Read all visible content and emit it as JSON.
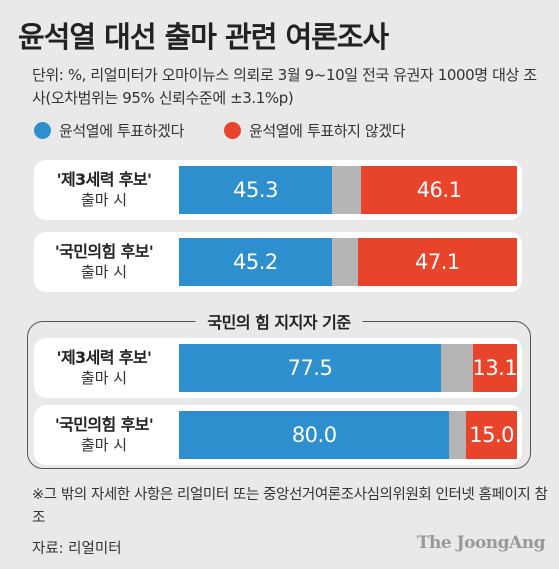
{
  "title": "윤석열 대선 출마 관련 여론조사",
  "subtitle": "단위: %, 리얼미터가 오마이뉴스 의뢰로 3월 9~10일 전국 유권자 1000명 대상 조사(오차범위는 95% 신뢰수준에 ±3.1%p)",
  "legend": {
    "vote": "윤석열에 투표하겠다",
    "no_vote": "윤석열에 투표하지 않겠다"
  },
  "colors": {
    "vote": "#2e8fce",
    "no_vote": "#e8442b",
    "other": "#b5b5b5"
  },
  "group_title": "국민의 힘 지지자 기준",
  "chart_data": [
    {
      "type": "bar",
      "title": "",
      "categories": [
        "'제3세력 후보' 출마 시",
        "'국민의힘 후보' 출마 시"
      ],
      "series": [
        {
          "name": "윤석열에 투표하겠다",
          "values": [
            45.3,
            45.2
          ]
        },
        {
          "name": "윤석열에 투표하지 않겠다",
          "values": [
            46.1,
            47.1
          ]
        }
      ],
      "stacked": true,
      "xlim": [
        0,
        100
      ]
    },
    {
      "type": "bar",
      "title": "국민의 힘 지지자 기준",
      "categories": [
        "'제3세력 후보' 출마 시",
        "'국민의힘 후보' 출마 시"
      ],
      "series": [
        {
          "name": "윤석열에 투표하겠다",
          "values": [
            77.5,
            80.0
          ]
        },
        {
          "name": "윤석열에 투표하지 않겠다",
          "values": [
            13.1,
            15.0
          ]
        }
      ],
      "stacked": true,
      "xlim": [
        0,
        100
      ]
    }
  ],
  "rows": [
    {
      "main": "'제3세력 후보'",
      "sub": "출마 시",
      "yes": 45.3,
      "no": 46.1,
      "yes_label": "45.3",
      "no_label": "46.1"
    },
    {
      "main": "'국민의힘 후보'",
      "sub": "출마 시",
      "yes": 45.2,
      "no": 47.1,
      "yes_label": "45.2",
      "no_label": "47.1"
    },
    {
      "main": "'제3세력 후보'",
      "sub": "출마 시",
      "yes": 77.5,
      "no": 13.1,
      "yes_label": "77.5",
      "no_label": "13.1"
    },
    {
      "main": "'국민의힘 후보'",
      "sub": "출마 시",
      "yes": 80.0,
      "no": 15.0,
      "yes_label": "80.0",
      "no_label": "15.0"
    }
  ],
  "note": "※그 밖의 자세한 사항은 리얼미터 또는 중앙선거여론조사심의위원회 인터넷 홈페이지 참조",
  "source": "자료: 리얼미터",
  "logo": "The JoongAng"
}
